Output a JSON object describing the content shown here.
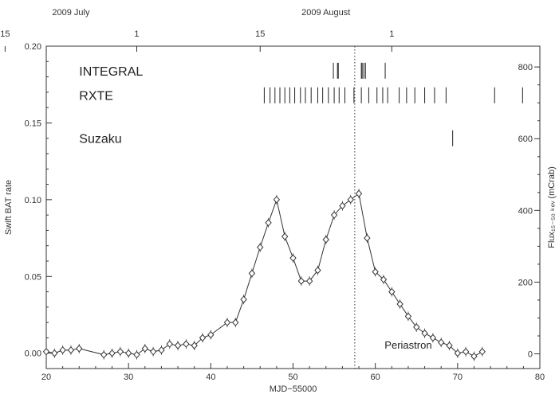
{
  "chart_data": {
    "type": "line",
    "xlabel": "MJD−55000",
    "ylabel_left": "Swift BAT rate",
    "ylabel_right": "Flux₁₅₋₅₀ ₖₑᵥ (mCrab)",
    "xlim": [
      20,
      80
    ],
    "ylim": [
      -0.01,
      0.2
    ],
    "right_ylim": [
      -41,
      858
    ],
    "x_ticks": [
      20,
      30,
      40,
      50,
      60,
      70,
      80
    ],
    "x_tick_labels": [
      "20",
      "30",
      "40",
      "50",
      "60",
      "70",
      "80"
    ],
    "y_ticks": [
      0.0,
      0.05,
      0.1,
      0.15,
      0.2
    ],
    "y_tick_labels": [
      "0.00",
      "0.05",
      "0.10",
      "0.15",
      "0.20"
    ],
    "right_ticks": [
      0,
      200,
      400,
      600,
      800
    ],
    "right_tick_labels": [
      "0",
      "200",
      "400",
      "600",
      "800"
    ],
    "top_ticks": [
      {
        "x": 15,
        "label": "15"
      },
      {
        "x": 31,
        "label": "1"
      },
      {
        "x": 46,
        "label": "15"
      },
      {
        "x": 62,
        "label": "1"
      }
    ],
    "top_months": [
      {
        "x": 23,
        "label": "2009 July"
      },
      {
        "x": 54,
        "label": "2009 August"
      }
    ],
    "series": [
      {
        "x": [
          20,
          21,
          22,
          23,
          24,
          27,
          28,
          29,
          30,
          31,
          32,
          33,
          34,
          35,
          36,
          37,
          38,
          39,
          40,
          42,
          43,
          44,
          45,
          46,
          47,
          48,
          49,
          50,
          51,
          52,
          53,
          54,
          55,
          56,
          57,
          58,
          59,
          60,
          61,
          62,
          63,
          64,
          65,
          66,
          67,
          68,
          69,
          70,
          71,
          72,
          73
        ],
        "y": [
          0.001,
          0.0,
          0.002,
          0.002,
          0.003,
          -0.001,
          0.0,
          0.001,
          0.0,
          -0.001,
          0.003,
          0.001,
          0.002,
          0.006,
          0.005,
          0.006,
          0.005,
          0.01,
          0.012,
          0.02,
          0.02,
          0.035,
          0.052,
          0.069,
          0.085,
          0.1,
          0.076,
          0.062,
          0.047,
          0.047,
          0.054,
          0.074,
          0.09,
          0.096,
          0.1,
          0.104,
          0.075,
          0.053,
          0.048,
          0.04,
          0.032,
          0.024,
          0.017,
          0.013,
          0.01,
          0.007,
          0.005,
          0.0,
          0.001,
          -0.002,
          0.001
        ]
      }
    ],
    "observatories": [
      {
        "name": "INTEGRAL",
        "y": 0.184,
        "x": [
          54.9,
          55.4,
          55.5,
          58.3,
          58.4,
          58.6,
          58.8,
          61.2
        ]
      },
      {
        "name": "RXTE",
        "y": 0.168,
        "x": [
          46.5,
          47.2,
          47.8,
          48.4,
          49.0,
          49.6,
          50.2,
          50.9,
          51.5,
          52.2,
          53.0,
          53.6,
          54.3,
          55.0,
          55.6,
          56.3,
          57.4,
          58.3,
          59.2,
          60.2,
          60.9,
          61.5,
          62.9,
          63.8,
          64.8,
          66.0,
          67.2,
          68.6,
          74.5,
          77.9
        ]
      },
      {
        "name": "Suzaku",
        "y": 0.14,
        "x": [
          69.4
        ]
      }
    ],
    "vline_x": 57.5,
    "annotation": "Periastron",
    "annotation_x": 64,
    "annotation_y": 0.003
  }
}
